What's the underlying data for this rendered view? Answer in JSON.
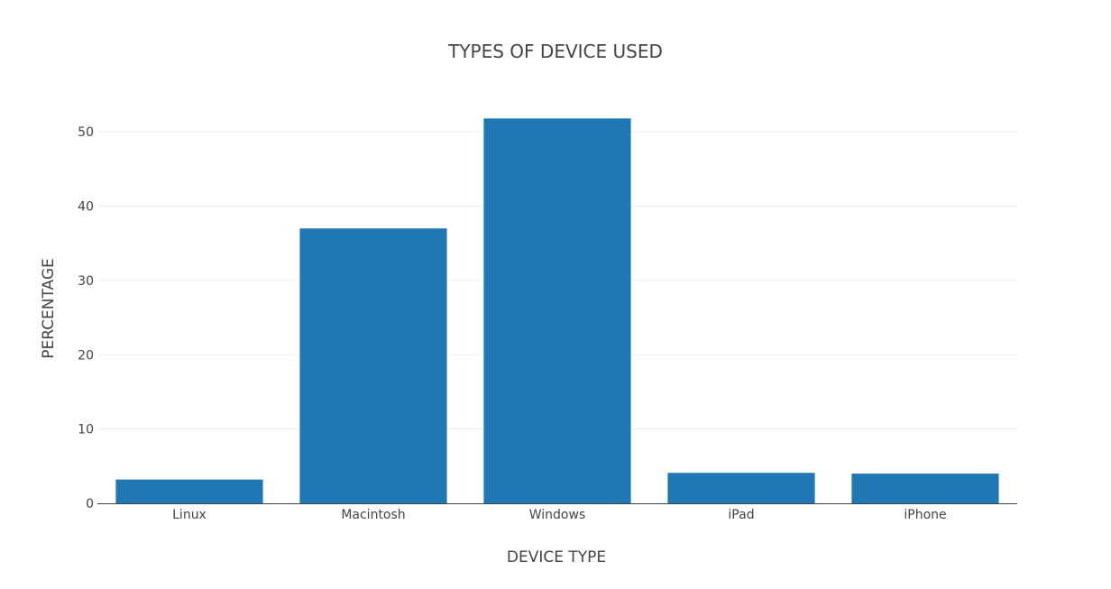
{
  "chart_data": {
    "type": "bar",
    "title": "TYPES OF DEVICE USED",
    "xlabel": "DEVICE TYPE",
    "ylabel": "PERCENTAGE",
    "categories": [
      "Linux",
      "Macintosh",
      "Windows",
      "iPad",
      "iPhone"
    ],
    "values": [
      3.2,
      37.0,
      51.8,
      4.1,
      4.0
    ],
    "ylim": [
      0,
      55
    ],
    "yticks": [
      0,
      10,
      20,
      30,
      40,
      50
    ],
    "grid": true,
    "bar_color": "#1f77b4"
  }
}
